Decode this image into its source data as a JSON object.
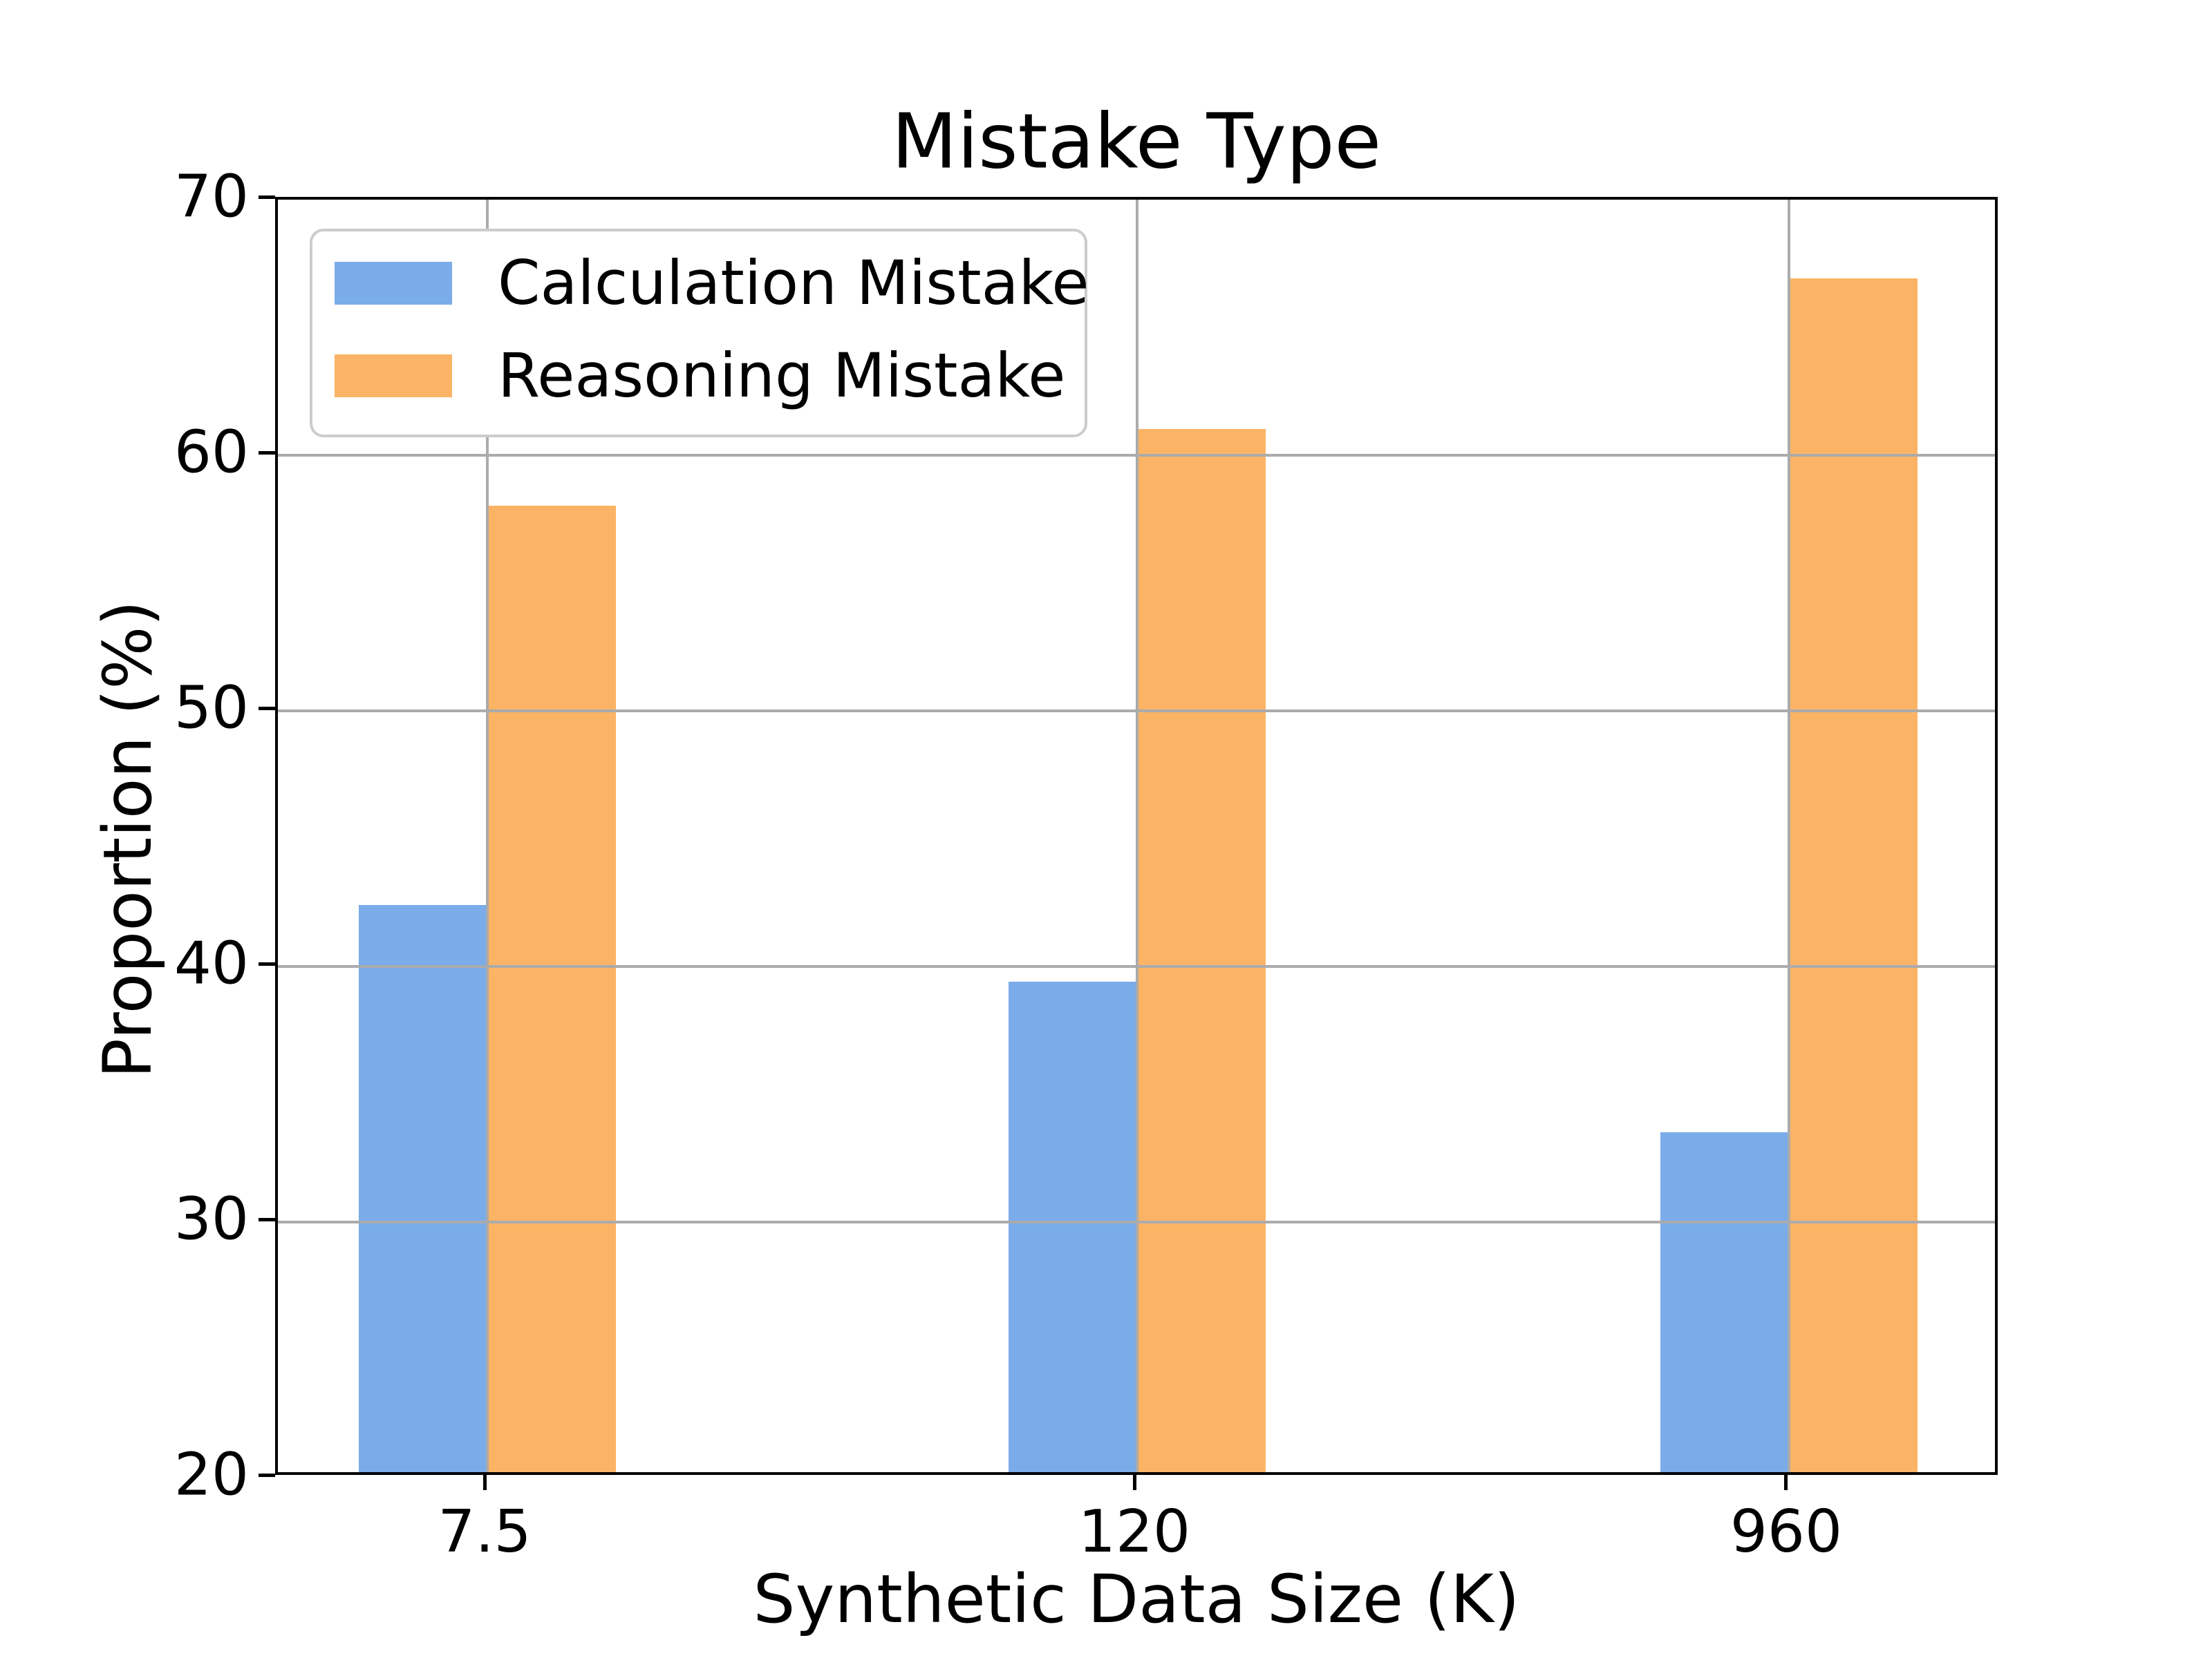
{
  "chart_data": {
    "type": "bar",
    "title": "Mistake Type",
    "xlabel": "Synthetic Data Size (K)",
    "ylabel": "Proportion (%)",
    "categories": [
      "7.5",
      "120",
      "960"
    ],
    "series": [
      {
        "name": "Calculation Mistake",
        "color": "#7BACEA",
        "values": [
          42.2,
          39.2,
          33.3
        ]
      },
      {
        "name": "Reasoning Mistake",
        "color": "#FBB465",
        "values": [
          57.8,
          60.8,
          66.7
        ]
      }
    ],
    "ylim": [
      20,
      70
    ],
    "y_ticks": [
      20,
      30,
      40,
      50,
      60,
      70
    ],
    "grid": true,
    "grid_color": "#ABABAB",
    "spine_color": "#000000",
    "background": "#ffffff",
    "legend_position": "upper left"
  }
}
